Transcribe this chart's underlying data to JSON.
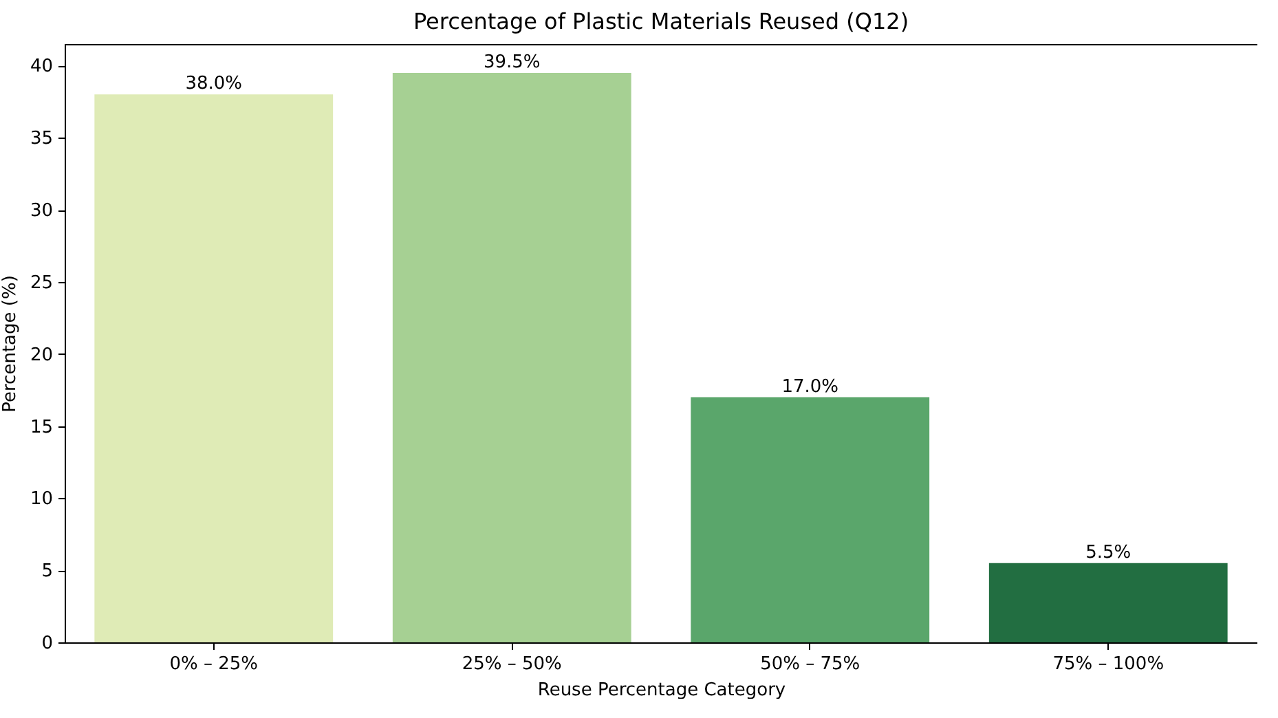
{
  "chart_data": {
    "type": "bar",
    "title": "Percentage of Plastic Materials Reused (Q12)",
    "xlabel": "Reuse Percentage Category",
    "ylabel": "Percentage (%)",
    "categories": [
      "0% – 25%",
      "25% – 50%",
      "50% – 75%",
      "75% – 100%"
    ],
    "values": [
      38.0,
      39.5,
      17.0,
      5.5
    ],
    "colors": [
      "#dfebb6",
      "#a6d093",
      "#5aa66b",
      "#226e41"
    ],
    "value_labels": [
      "38.0%",
      "39.5%",
      "17.0%",
      "5.5%"
    ],
    "ylim": [
      0,
      41.5
    ],
    "yticks": [
      0,
      5,
      10,
      15,
      20,
      25,
      30,
      35,
      40
    ],
    "grid": false,
    "legend": false
  }
}
